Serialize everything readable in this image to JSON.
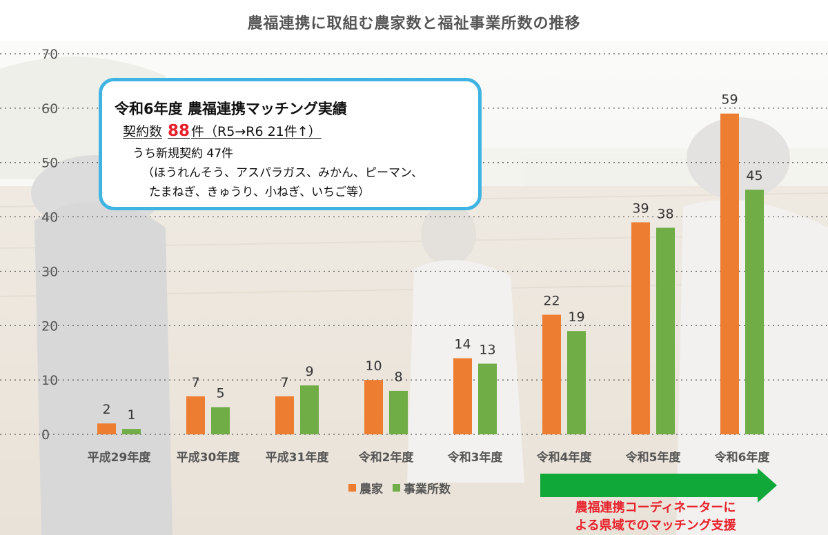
{
  "chart_data": {
    "type": "bar",
    "title": "農福連携に取組む農家数と福祉事業所数の推移",
    "categories": [
      "平成29年度",
      "平成30年度",
      "平成31年度",
      "令和2年度",
      "令和3年度",
      "令和4年度",
      "令和5年度",
      "令和6年度"
    ],
    "series": [
      {
        "name": "農家",
        "color": "#ed7d31",
        "values": [
          2,
          7,
          7,
          10,
          14,
          22,
          39,
          59
        ]
      },
      {
        "name": "事業所数",
        "color": "#70ad47",
        "values": [
          1,
          5,
          9,
          8,
          13,
          19,
          38,
          45
        ]
      }
    ],
    "ylim": [
      0,
      70
    ],
    "yticks": [
      0,
      10,
      20,
      30,
      40,
      50,
      60,
      70
    ],
    "grid": true,
    "legend": "bottom"
  },
  "callout": {
    "heading": "令和6年度  農福連携マッチング実績",
    "contracts_prefix": "契約数",
    "contracts_value": "88",
    "contracts_suffix": "件（R5→R6  21件↑）",
    "new_contracts": "うち新規契約  47件",
    "crops_line1": "（ほうれんそう、アスパラガス、みかん、ピーマン、",
    "crops_line2": "たまねぎ、きゅうり、小ねぎ、いちご等）"
  },
  "arrow_note": {
    "line1": "農福連携コーディネーターに",
    "line2": "よる県域でのマッチング支援",
    "arrow_color": "#10a838",
    "text_color": "#e8202a"
  }
}
